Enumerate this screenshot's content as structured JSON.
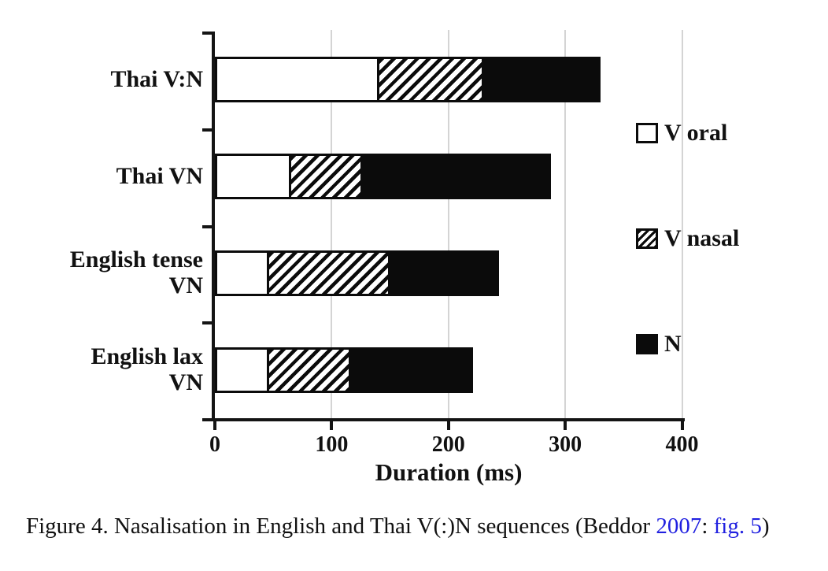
{
  "chart_data": {
    "type": "bar",
    "orientation": "horizontal",
    "stacked": true,
    "title": "",
    "xlabel": "Duration (ms)",
    "ylabel": "",
    "xlim": [
      0,
      400
    ],
    "xticks": [
      0,
      100,
      200,
      300,
      400
    ],
    "grid": "vertical light-gray gridlines at each x tick",
    "legend_position": "right",
    "categories": [
      "Thai V:N",
      "Thai VN",
      "English tense VN",
      "English lax VN"
    ],
    "category_label_lines": [
      [
        "Thai V:N"
      ],
      [
        "Thai VN"
      ],
      [
        "English tense",
        "VN"
      ],
      [
        "English lax",
        "VN"
      ]
    ],
    "series": [
      {
        "name": "V oral",
        "fill": "white",
        "values": [
          140,
          63,
          44,
          44
        ]
      },
      {
        "name": "V nasal",
        "fill": "hatch",
        "values": [
          90,
          61,
          105,
          71
        ]
      },
      {
        "name": "N",
        "fill": "black",
        "values": [
          100,
          164,
          94,
          106
        ]
      }
    ],
    "totals_ms": [
      330,
      288,
      243,
      221
    ]
  },
  "legend": {
    "items": [
      {
        "label": "V oral",
        "swatch": "white"
      },
      {
        "label": "V nasal",
        "swatch": "hatch"
      },
      {
        "label": "N",
        "swatch": "black"
      }
    ]
  },
  "caption": {
    "prefix": "Figure 4. Nasalisation in English and Thai V(:)N sequences (Beddor ",
    "link_year": "2007",
    "separator": ": ",
    "link_fig": "fig. 5",
    "suffix": ")"
  },
  "colors": {
    "bar_black": "#0b0b0b",
    "axis": "#141414",
    "gridline": "#d4d4d4",
    "link_blue": "#2020e0",
    "text": "#111111",
    "background": "#ffffff"
  }
}
